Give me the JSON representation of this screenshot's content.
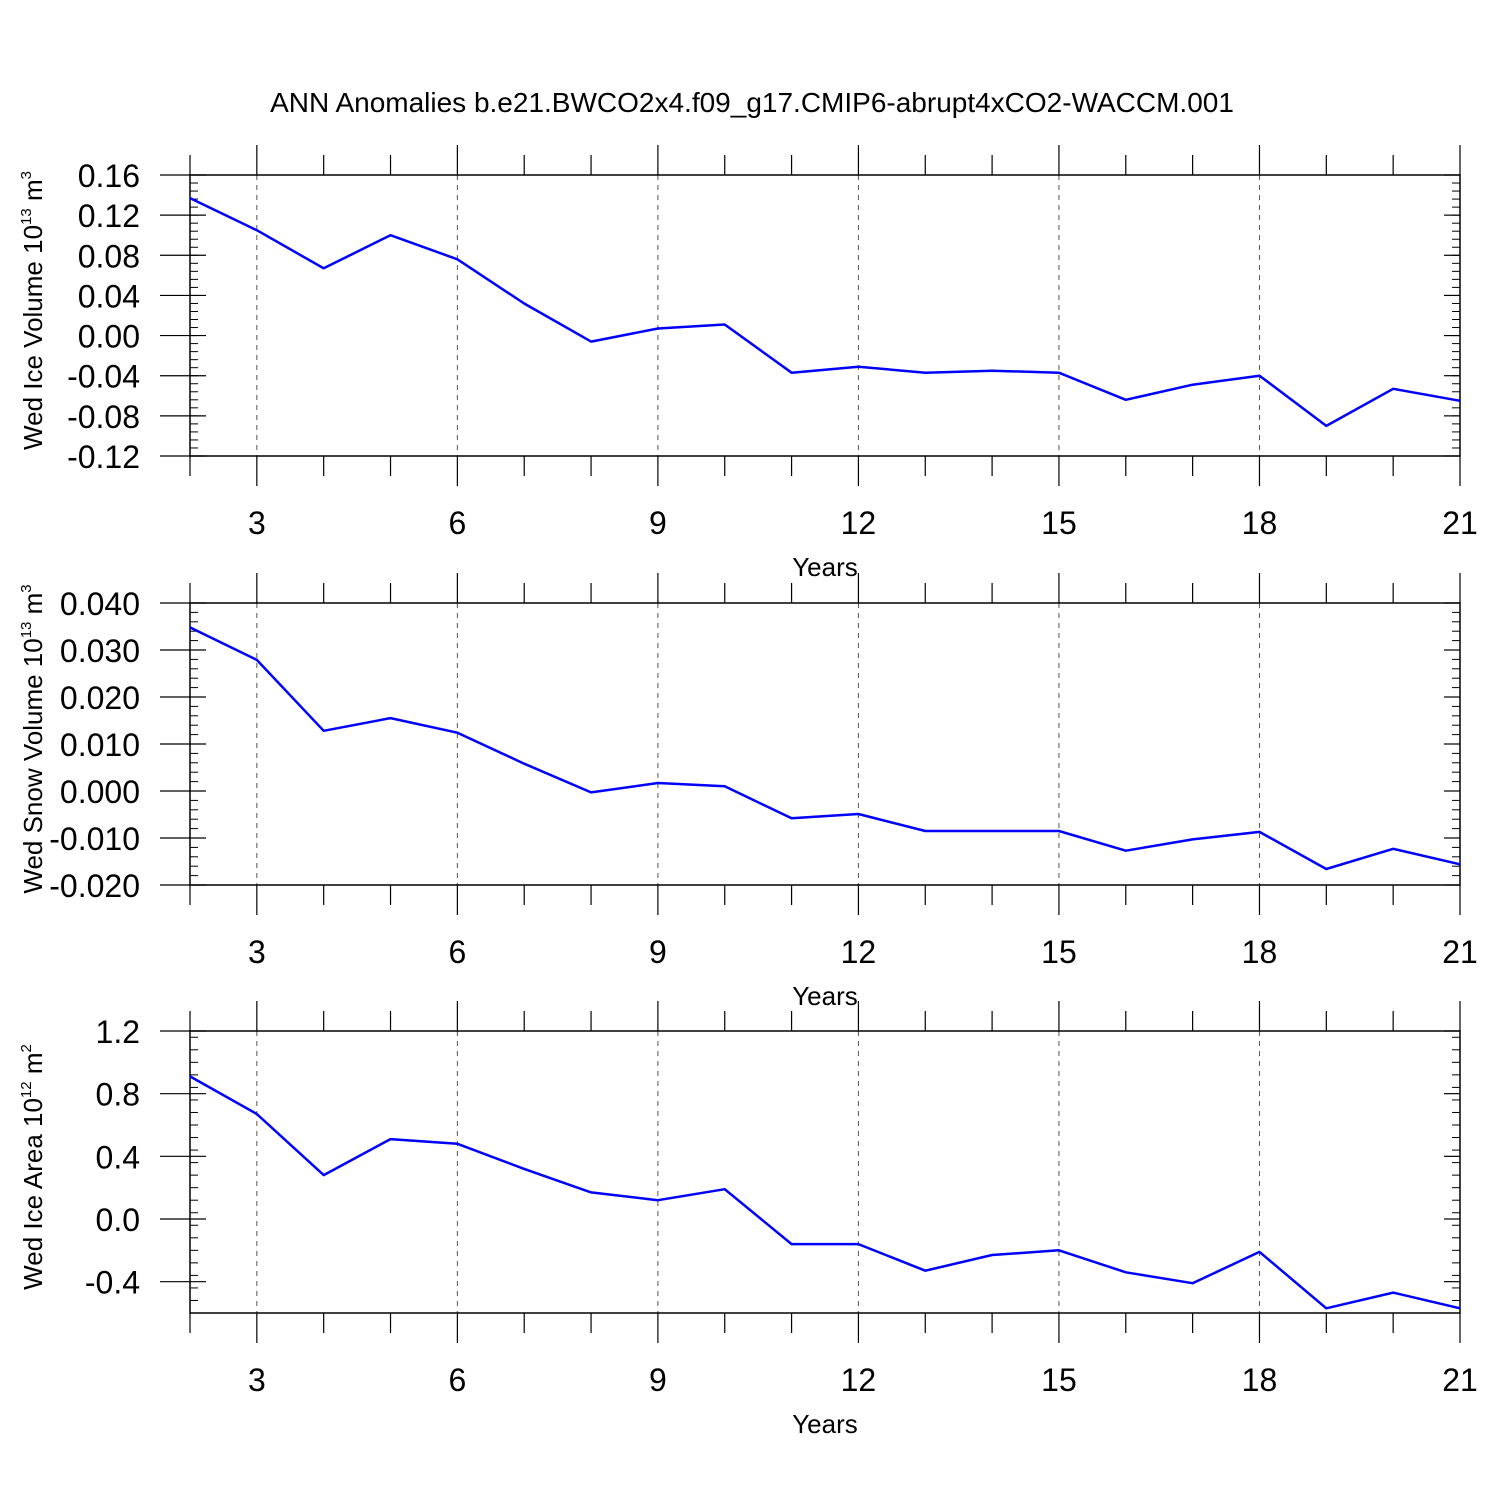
{
  "title": "ANN Anomalies b.e21.BWCO2x4.f09_g17.CMIP6-abrupt4xCO2-WACCM.001",
  "line_color": "#0000ff",
  "chart_data": [
    {
      "type": "line",
      "ylabel": {
        "main": "Wed Ice Volume 10",
        "exp": "13",
        "unit": "m",
        "unit_exp": "3"
      },
      "xlabel": "Years",
      "xlim": [
        2,
        21
      ],
      "ylim": [
        -0.12,
        0.16
      ],
      "xticks": [
        3,
        6,
        9,
        12,
        15,
        18,
        21
      ],
      "xtick_labels": [
        "3",
        "6",
        "9",
        "12",
        "15",
        "18",
        "21"
      ],
      "yticks": [
        -0.12,
        -0.08,
        -0.04,
        0.0,
        0.04,
        0.08,
        0.12,
        0.16
      ],
      "ytick_labels": [
        "-0.12",
        "-0.08",
        "-0.04",
        "0.00",
        "0.04",
        "0.08",
        "0.12",
        "0.16"
      ],
      "y_minor_step": 0.008,
      "x": [
        2,
        3,
        4,
        5,
        6,
        7,
        8,
        9,
        10,
        11,
        12,
        13,
        14,
        15,
        16,
        17,
        18,
        19,
        20,
        21
      ],
      "y": [
        0.137,
        0.105,
        0.067,
        0.1,
        0.076,
        0.032,
        -0.006,
        0.007,
        0.011,
        -0.037,
        -0.031,
        -0.037,
        -0.035,
        -0.037,
        -0.064,
        -0.049,
        -0.04,
        -0.09,
        -0.053,
        -0.065
      ]
    },
    {
      "type": "line",
      "ylabel": {
        "main": "Wed Snow Volume 10",
        "exp": "13",
        "unit": "m",
        "unit_exp": "3"
      },
      "xlabel": "Years",
      "xlim": [
        2,
        21
      ],
      "ylim": [
        -0.02,
        0.04
      ],
      "xticks": [
        3,
        6,
        9,
        12,
        15,
        18,
        21
      ],
      "xtick_labels": [
        "3",
        "6",
        "9",
        "12",
        "15",
        "18",
        "21"
      ],
      "yticks": [
        -0.02,
        -0.01,
        0.0,
        0.01,
        0.02,
        0.03,
        0.04
      ],
      "ytick_labels": [
        "-0.020",
        "-0.010",
        "0.000",
        "0.010",
        "0.020",
        "0.030",
        "0.040"
      ],
      "y_minor_step": 0.002,
      "x": [
        2,
        3,
        4,
        5,
        6,
        7,
        8,
        9,
        10,
        11,
        12,
        13,
        14,
        15,
        16,
        17,
        18,
        19,
        20,
        21
      ],
      "y": [
        0.0348,
        0.0279,
        0.0128,
        0.0155,
        0.0124,
        0.0058,
        -0.0003,
        0.0017,
        0.001,
        -0.0058,
        -0.0049,
        -0.0085,
        -0.0085,
        -0.0085,
        -0.0127,
        -0.0103,
        -0.0087,
        -0.0166,
        -0.0123,
        -0.0156
      ]
    },
    {
      "type": "line",
      "ylabel": {
        "main": "Wed Ice Area 10",
        "exp": "12",
        "unit": "m",
        "unit_exp": "2"
      },
      "xlabel": "Years",
      "xlim": [
        2,
        21
      ],
      "ylim": [
        -0.6,
        1.2
      ],
      "xticks": [
        3,
        6,
        9,
        12,
        15,
        18,
        21
      ],
      "xtick_labels": [
        "3",
        "6",
        "9",
        "12",
        "15",
        "18",
        "21"
      ],
      "yticks": [
        -0.4,
        0.0,
        0.4,
        0.8,
        1.2
      ],
      "ytick_labels": [
        "-0.4",
        "0.0",
        "0.4",
        "0.8",
        "1.2"
      ],
      "y_minor_step": 0.08,
      "x": [
        2,
        3,
        4,
        5,
        6,
        7,
        8,
        9,
        10,
        11,
        12,
        13,
        14,
        15,
        16,
        17,
        18,
        19,
        20,
        21
      ],
      "y": [
        0.91,
        0.67,
        0.28,
        0.51,
        0.48,
        0.32,
        0.17,
        0.12,
        0.19,
        -0.16,
        -0.16,
        -0.33,
        -0.23,
        -0.2,
        -0.34,
        -0.41,
        -0.21,
        -0.57,
        -0.47,
        -0.57
      ]
    }
  ]
}
